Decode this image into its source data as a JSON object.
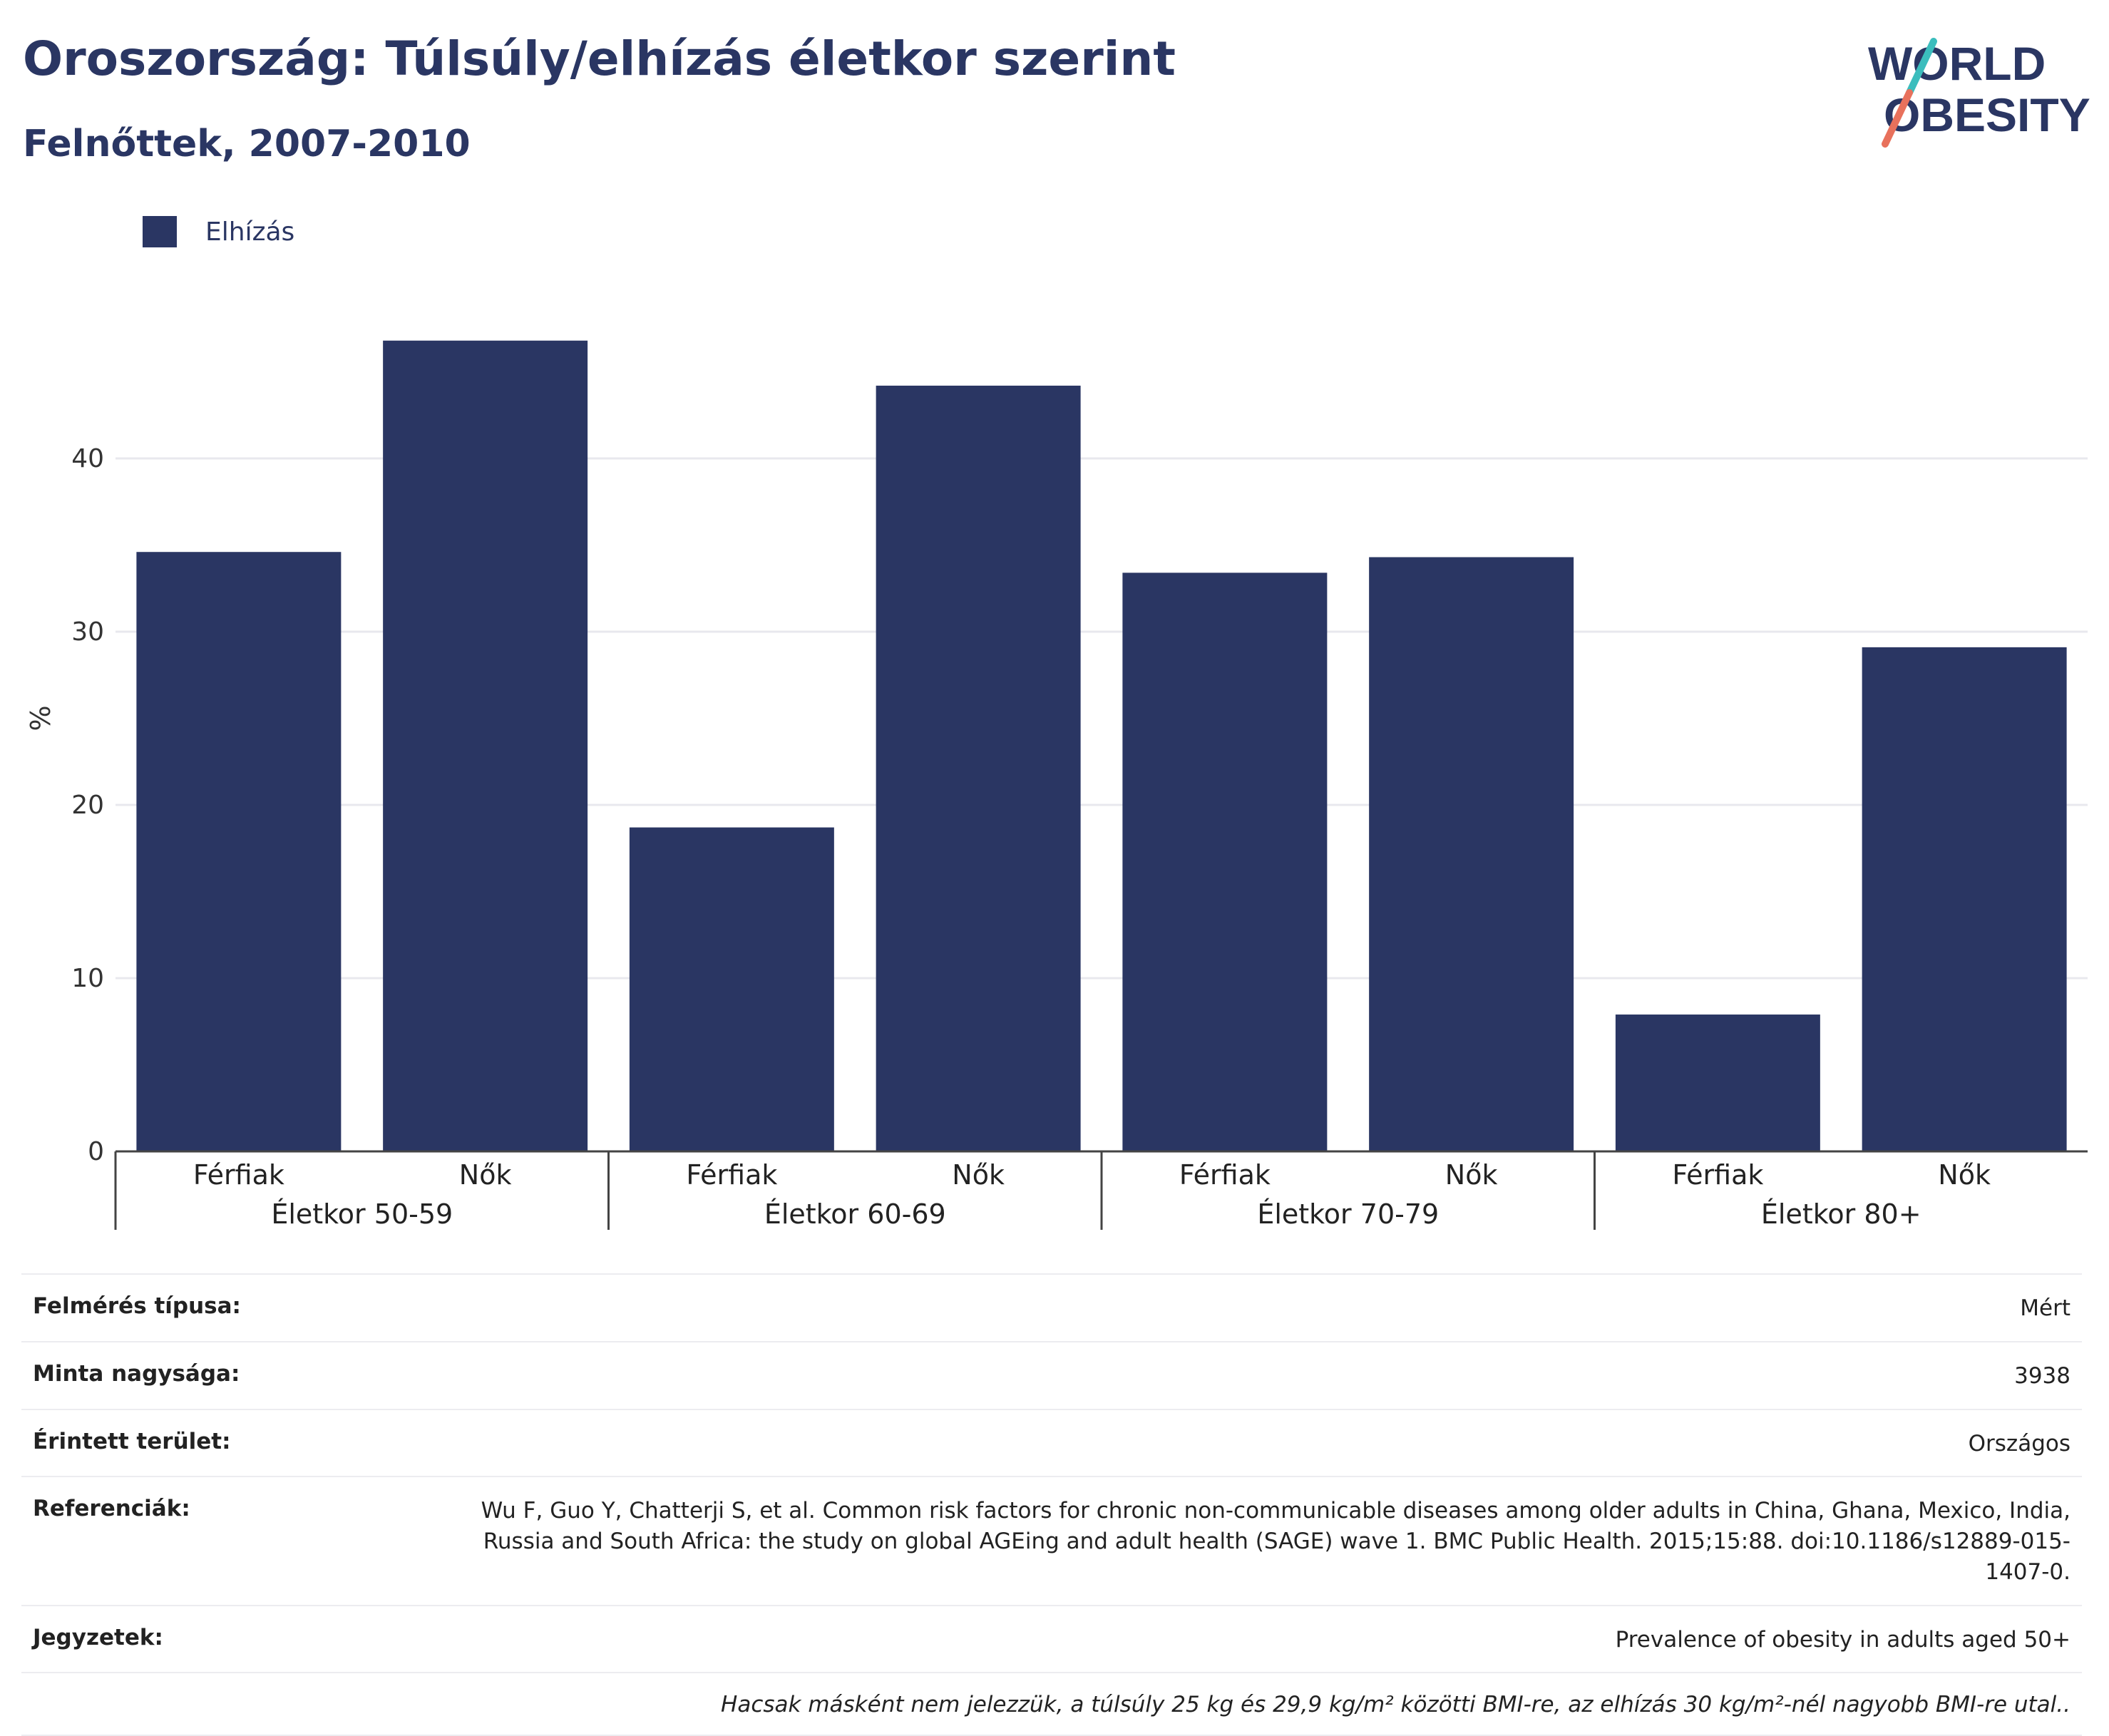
{
  "title": "Oroszország: Túlsúly/elhízás életkor szerint",
  "subtitle": "Felnőttek, 2007-2010",
  "logo": {
    "line1": "WORLD",
    "line2": "OBESITY"
  },
  "colors": {
    "bar": "#2a3663",
    "grid": "#e8e8ee",
    "axis": "#444444",
    "logo_teal": "#3bbdbd",
    "logo_coral": "#e8715c"
  },
  "chart_data": {
    "type": "bar",
    "legend": [
      "Elhízás"
    ],
    "legend_position": "top-left",
    "ylabel": "%",
    "ylim": [
      0,
      50
    ],
    "yticks": [
      0,
      10,
      20,
      30,
      40
    ],
    "grid": true,
    "groups": [
      {
        "label": "Életkor 50-59",
        "categories": [
          "Férfiak",
          "Nők"
        ],
        "values": [
          34.6,
          46.8
        ]
      },
      {
        "label": "Életkor 60-69",
        "categories": [
          "Férfiak",
          "Nők"
        ],
        "values": [
          18.7,
          44.2
        ]
      },
      {
        "label": "Életkor 70-79",
        "categories": [
          "Férfiak",
          "Nők"
        ],
        "values": [
          33.4,
          34.3
        ]
      },
      {
        "label": "Életkor 80+",
        "categories": [
          "Férfiak",
          "Nők"
        ],
        "values": [
          7.9,
          29.1
        ]
      }
    ],
    "series": [
      {
        "name": "Elhízás"
      }
    ]
  },
  "info": {
    "survey_type": {
      "label": "Felmérés típusa:",
      "value": "Mért"
    },
    "sample_size": {
      "label": "Minta nagysága:",
      "value": "3938"
    },
    "area": {
      "label": "Érintett terület:",
      "value": "Országos"
    },
    "references": {
      "label": "Referenciák:",
      "value": "Wu F, Guo Y, Chatterji S, et al. Common risk factors for chronic non-communicable diseases among older adults in China, Ghana, Mexico, India, Russia and South Africa: the study on global AGEing and adult health (SAGE) wave 1. BMC Public Health. 2015;15:88. doi:10.1186/s12889-015-1407-0."
    },
    "notes": {
      "label": "Jegyzetek:",
      "value": "Prevalence of obesity in adults aged 50+"
    },
    "footnote": "Hacsak másként nem jelezzük, a túlsúly 25 kg és 29,9 kg/m² közötti BMI-re, az elhízás 30 kg/m²-nél nagyobb BMI-re utal.."
  }
}
